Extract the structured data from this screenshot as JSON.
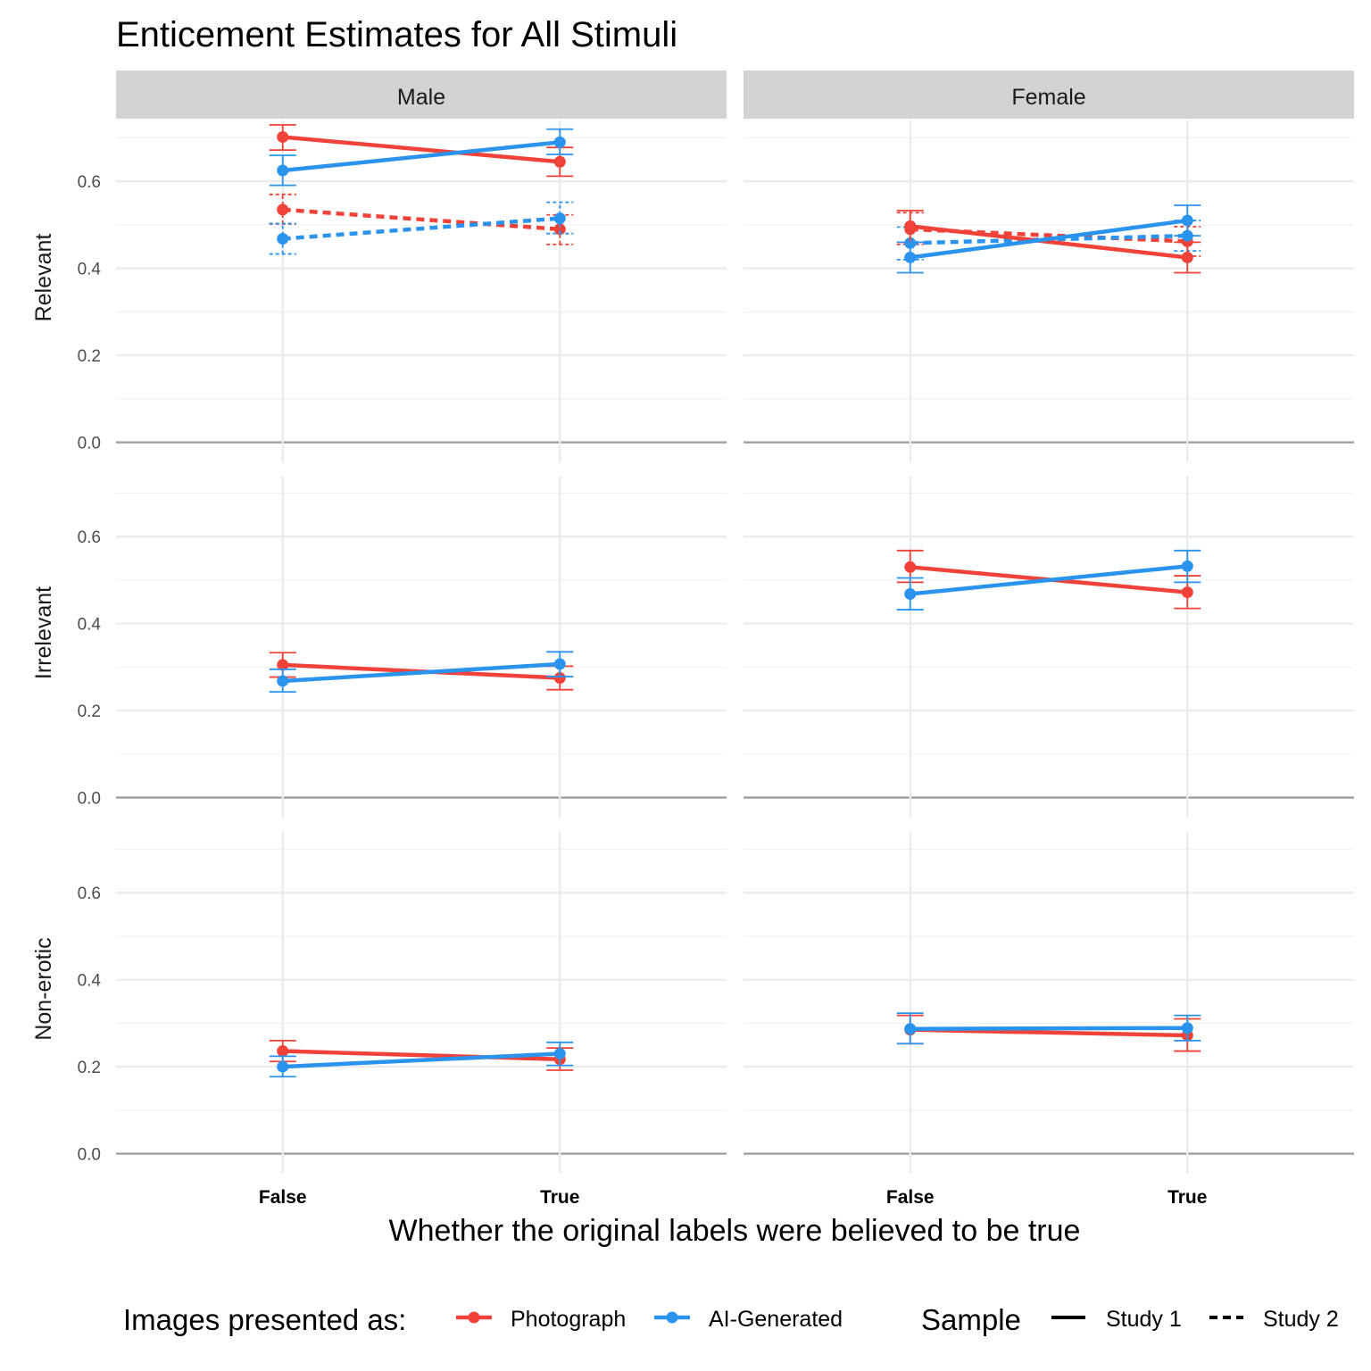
{
  "chart_data": {
    "type": "line",
    "title": "Enticement Estimates for All Stimuli",
    "xlabel": "Whether the original labels were believed to be true",
    "ylabel": "",
    "x_categories": [
      "False",
      "True"
    ],
    "y_ticks": [
      "0.0",
      "0.2",
      "0.4",
      "0.6"
    ],
    "ylim": [
      -0.04,
      0.74
    ],
    "grid": true,
    "columns": [
      "Male",
      "Female"
    ],
    "rows": [
      "Relevant",
      "Irrelevant",
      "Non-erotic"
    ],
    "legend": {
      "position": "bottom",
      "color_title": "Images presented as:",
      "color_items": [
        {
          "key": "photo",
          "label": "Photograph",
          "color": "#F04238"
        },
        {
          "key": "ai",
          "label": "AI-Generated",
          "color": "#2A93EE"
        }
      ],
      "linetype_title": "Sample",
      "linetype_items": [
        {
          "key": "study1",
          "label": "Study 1",
          "dash": "solid"
        },
        {
          "key": "study2",
          "label": "Study 2",
          "dash": "dashed"
        }
      ]
    },
    "panels": [
      {
        "row": "Relevant",
        "col": "Male",
        "series": [
          {
            "color": "photo",
            "sample": "study1",
            "values": [
              0.702,
              0.645
            ],
            "lower": [
              0.672,
              0.612
            ],
            "upper": [
              0.73,
              0.678
            ]
          },
          {
            "color": "ai",
            "sample": "study1",
            "values": [
              0.625,
              0.69
            ],
            "lower": [
              0.591,
              0.662
            ],
            "upper": [
              0.66,
              0.72
            ]
          },
          {
            "color": "photo",
            "sample": "study2",
            "values": [
              0.535,
              0.49
            ],
            "lower": [
              0.502,
              0.455
            ],
            "upper": [
              0.57,
              0.523
            ]
          },
          {
            "color": "ai",
            "sample": "study2",
            "values": [
              0.468,
              0.515
            ],
            "lower": [
              0.433,
              0.48
            ],
            "upper": [
              0.503,
              0.552
            ]
          }
        ]
      },
      {
        "row": "Relevant",
        "col": "Female",
        "series": [
          {
            "color": "photo",
            "sample": "study1",
            "values": [
              0.497,
              0.425
            ],
            "lower": [
              0.46,
              0.39
            ],
            "upper": [
              0.533,
              0.46
            ]
          },
          {
            "color": "ai",
            "sample": "study1",
            "values": [
              0.425,
              0.51
            ],
            "lower": [
              0.39,
              0.475
            ],
            "upper": [
              0.46,
              0.545
            ]
          },
          {
            "color": "photo",
            "sample": "study2",
            "values": [
              0.49,
              0.462
            ],
            "lower": [
              0.455,
              0.428
            ],
            "upper": [
              0.528,
              0.496
            ]
          },
          {
            "color": "ai",
            "sample": "study2",
            "values": [
              0.458,
              0.475
            ],
            "lower": [
              0.42,
              0.44
            ],
            "upper": [
              0.495,
              0.51
            ]
          }
        ]
      },
      {
        "row": "Irrelevant",
        "col": "Male",
        "series": [
          {
            "color": "photo",
            "sample": "study1",
            "values": [
              0.305,
              0.275
            ],
            "lower": [
              0.277,
              0.248
            ],
            "upper": [
              0.333,
              0.302
            ]
          },
          {
            "color": "ai",
            "sample": "study1",
            "values": [
              0.268,
              0.307
            ],
            "lower": [
              0.243,
              0.278
            ],
            "upper": [
              0.295,
              0.335
            ]
          }
        ]
      },
      {
        "row": "Irrelevant",
        "col": "Female",
        "series": [
          {
            "color": "photo",
            "sample": "study1",
            "values": [
              0.53,
              0.472
            ],
            "lower": [
              0.495,
              0.435
            ],
            "upper": [
              0.568,
              0.51
            ]
          },
          {
            "color": "ai",
            "sample": "study1",
            "values": [
              0.468,
              0.532
            ],
            "lower": [
              0.432,
              0.495
            ],
            "upper": [
              0.505,
              0.568
            ]
          }
        ]
      },
      {
        "row": "Non-erotic",
        "col": "Male",
        "series": [
          {
            "color": "photo",
            "sample": "study1",
            "values": [
              0.236,
              0.217
            ],
            "lower": [
              0.212,
              0.192
            ],
            "upper": [
              0.26,
              0.243
            ]
          },
          {
            "color": "ai",
            "sample": "study1",
            "values": [
              0.2,
              0.23
            ],
            "lower": [
              0.177,
              0.203
            ],
            "upper": [
              0.224,
              0.256
            ]
          }
        ]
      },
      {
        "row": "Non-erotic",
        "col": "Female",
        "series": [
          {
            "color": "photo",
            "sample": "study1",
            "values": [
              0.285,
              0.272
            ],
            "lower": [
              0.253,
              0.236
            ],
            "upper": [
              0.318,
              0.31
            ]
          },
          {
            "color": "ai",
            "sample": "study1",
            "values": [
              0.287,
              0.289
            ],
            "lower": [
              0.253,
              0.26
            ],
            "upper": [
              0.323,
              0.318
            ]
          }
        ]
      }
    ]
  }
}
